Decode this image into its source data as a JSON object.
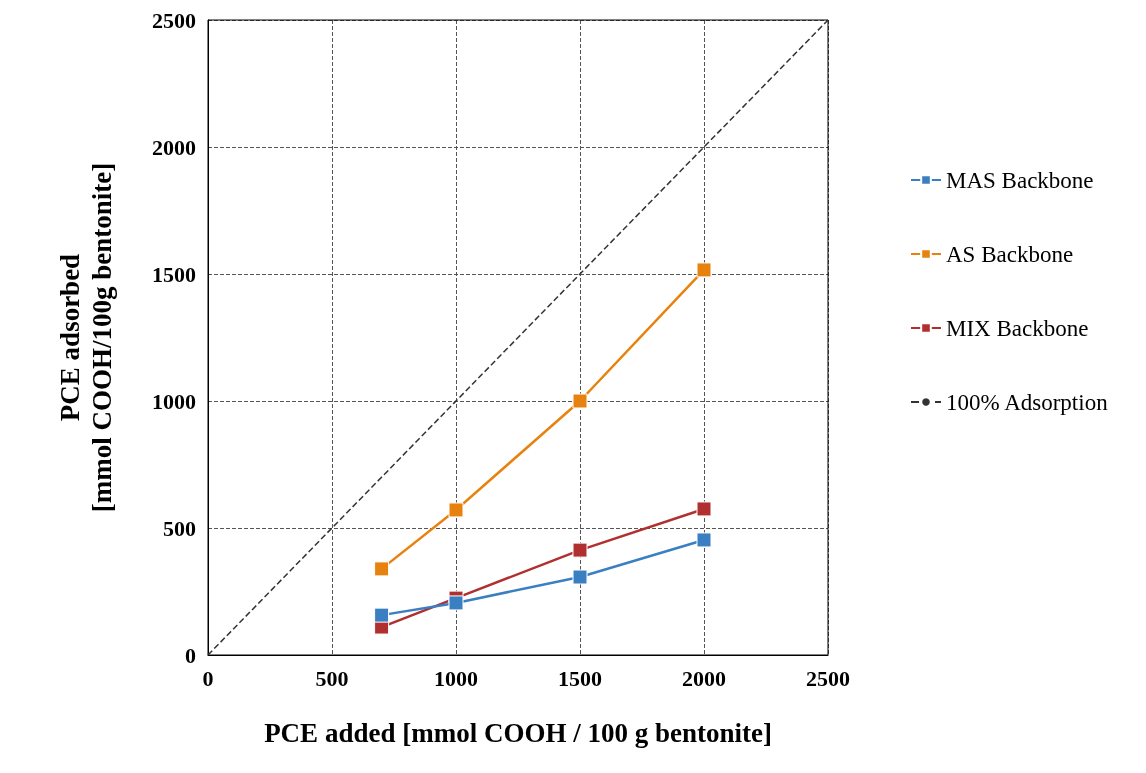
{
  "chart_data": {
    "type": "line",
    "xlabel": "PCE added [mmol COOH / 100 g bentonite]",
    "ylabel": "PCE adsorbed\n[mmol COOH/100g bentonite]",
    "x": [
      700,
      1000,
      1500,
      2000
    ],
    "series": [
      {
        "name": "MAS Backbone",
        "color": "#3a7fc1",
        "values": [
          157,
          205,
          307,
          453
        ]
      },
      {
        "name": "AS Backbone",
        "color": "#e8820e",
        "values": [
          339,
          571,
          1000,
          1516
        ]
      },
      {
        "name": "MIX Backbone",
        "color": "#b03030",
        "values": [
          110,
          224,
          413,
          575
        ]
      },
      {
        "name": "100% Adsorption",
        "color": "#333333",
        "x": [
          0,
          2500
        ],
        "values": [
          0,
          2500
        ],
        "line_style": "dashed",
        "marker": "none"
      }
    ],
    "marker": "square",
    "line_style": "solid",
    "xlim": [
      0,
      2500
    ],
    "xticks": [
      0,
      500,
      1000,
      1500,
      2000,
      2500
    ],
    "ylim": [
      0,
      2500
    ],
    "yticks": [
      0,
      500,
      1000,
      1500,
      2000,
      2500
    ],
    "grid": true,
    "legend": "right"
  }
}
